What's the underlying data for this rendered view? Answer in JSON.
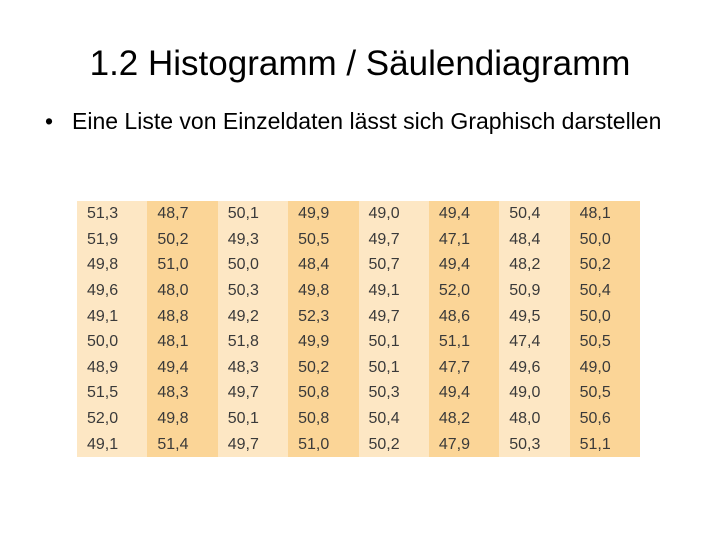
{
  "title": "1.2 Histogramm / Säulendiagramm",
  "bullets": [
    "Eine Liste von Einzeldaten lässt sich Graphisch darstellen"
  ],
  "table": {
    "rows": [
      [
        "51,3",
        "48,7",
        "50,1",
        "49,9",
        "49,0",
        "49,4",
        "50,4",
        "48,1"
      ],
      [
        "51,9",
        "50,2",
        "49,3",
        "50,5",
        "49,7",
        "47,1",
        "48,4",
        "50,0"
      ],
      [
        "49,8",
        "51,0",
        "50,0",
        "48,4",
        "50,7",
        "49,4",
        "48,2",
        "50,2"
      ],
      [
        "49,6",
        "48,0",
        "50,3",
        "49,8",
        "49,1",
        "52,0",
        "50,9",
        "50,4"
      ],
      [
        "49,1",
        "48,8",
        "49,2",
        "52,3",
        "49,7",
        "48,6",
        "49,5",
        "50,0"
      ],
      [
        "50,0",
        "48,1",
        "51,8",
        "49,9",
        "50,1",
        "51,1",
        "47,4",
        "50,5"
      ],
      [
        "48,9",
        "49,4",
        "48,3",
        "50,2",
        "50,1",
        "47,7",
        "49,6",
        "49,0"
      ],
      [
        "51,5",
        "48,3",
        "49,7",
        "50,8",
        "50,3",
        "49,4",
        "49,0",
        "50,5"
      ],
      [
        "52,0",
        "49,8",
        "50,1",
        "50,8",
        "50,4",
        "48,2",
        "48,0",
        "50,6"
      ],
      [
        "49,1",
        "51,4",
        "49,7",
        "51,0",
        "50,2",
        "47,9",
        "50,3",
        "51,1"
      ]
    ]
  }
}
